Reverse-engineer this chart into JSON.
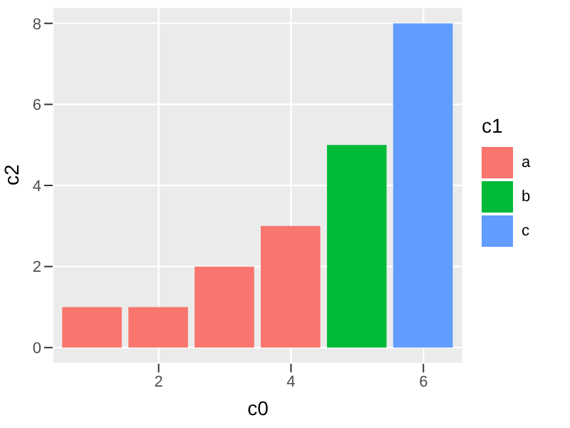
{
  "chart_data": {
    "type": "bar",
    "xlabel": "c0",
    "ylabel": "c2",
    "legend_title": "c1",
    "x": [
      1,
      2,
      3,
      4,
      5,
      6
    ],
    "stacked": true,
    "series": [
      {
        "name": "a",
        "color": "#f8766d",
        "values": [
          1,
          1,
          2,
          3,
          null,
          null
        ]
      },
      {
        "name": "b",
        "color": "#00ba38",
        "values": [
          null,
          null,
          null,
          null,
          5,
          null
        ]
      },
      {
        "name": "c",
        "color": "#619cff",
        "values": [
          null,
          null,
          null,
          null,
          null,
          8
        ]
      }
    ],
    "xlim": [
      0.4,
      6.6
    ],
    "xticks": [
      2,
      4,
      6
    ],
    "ylim": [
      -0.4,
      8.4
    ],
    "yticks": [
      0,
      2,
      4,
      6,
      8
    ],
    "grid": true,
    "legend": "right"
  }
}
